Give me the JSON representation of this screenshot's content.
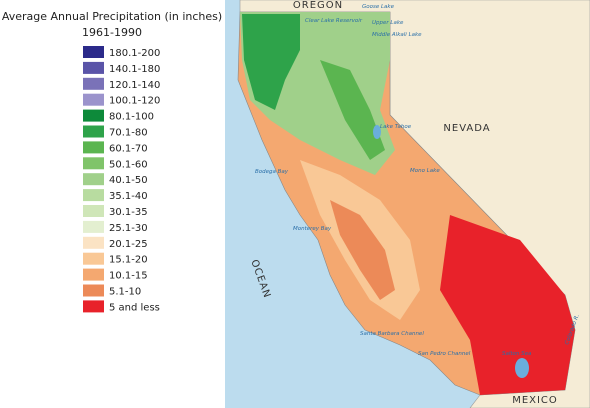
{
  "title": "Average Annual Precipitation (in inches)",
  "subtitle": "1961-1990",
  "legend": [
    {
      "label": "180.1-200",
      "color": "#2b2a8a"
    },
    {
      "label": "140.1-180",
      "color": "#5a54a8"
    },
    {
      "label": "120.1-140",
      "color": "#7a72b8"
    },
    {
      "label": "100.1-120",
      "color": "#9b93cc"
    },
    {
      "label": "80.1-100",
      "color": "#0d8a3a"
    },
    {
      "label": "70.1-80",
      "color": "#2ea34a"
    },
    {
      "label": "60.1-70",
      "color": "#5bb550"
    },
    {
      "label": "50.1-60",
      "color": "#80c46a"
    },
    {
      "label": "40.1-50",
      "color": "#a0d08a"
    },
    {
      "label": "35.1-40",
      "color": "#b8dca0"
    },
    {
      "label": "30.1-35",
      "color": "#cfe6b8"
    },
    {
      "label": "25.1-30",
      "color": "#e3efd0"
    },
    {
      "label": "20.1-25",
      "color": "#fbe3c4"
    },
    {
      "label": "15.1-20",
      "color": "#f9c896"
    },
    {
      "label": "10.1-15",
      "color": "#f4a870"
    },
    {
      "label": "5.1-10",
      "color": "#ec8a58"
    },
    {
      "label": "5 and less",
      "color": "#e8222a"
    }
  ],
  "map_labels": {
    "oregon": "OREGON",
    "nevada": "NEVADA",
    "ocean": "OCEAN",
    "mexico": "MEXICO",
    "lake_tahoe": "Lake Tahoe",
    "goose_lake": "Goose Lake",
    "clear_lake": "Clear Lake Reservoir",
    "upper_lake": "Upper Lake",
    "middle_alkali": "Middle Alkali Lake",
    "mono_lake": "Mono Lake",
    "bodega_bay": "Bodega Bay",
    "monterey_bay": "Monterey Bay",
    "sb_channel": "Santa Barbara Channel",
    "san_pedro": "San Pedro Channel",
    "salton_sea": "Salton Sea",
    "colorado": "Colorado R."
  }
}
